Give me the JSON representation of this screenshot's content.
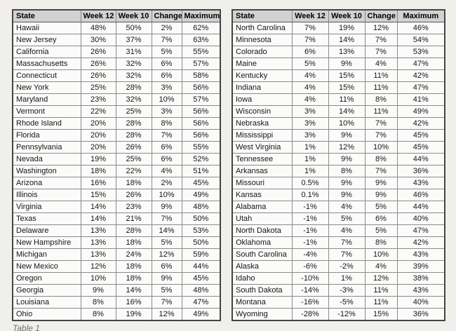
{
  "caption": "Table 1",
  "colors": {
    "page_background": "#f0efec",
    "header_background": "#d2d2d2",
    "cell_background": "#fbfbfa",
    "outer_border": "#444444",
    "inner_border": "#8a8a8a",
    "caption_color": "#6f6f6f"
  },
  "left_table": {
    "headers": [
      "State",
      "Week 12",
      "Week 10",
      "Change",
      "Maximum"
    ],
    "rows": [
      [
        "Hawaii",
        "48%",
        "50%",
        "2%",
        "62%"
      ],
      [
        "New Jersey",
        "30%",
        "37%",
        "7%",
        "63%"
      ],
      [
        "California",
        "26%",
        "31%",
        "5%",
        "55%"
      ],
      [
        "Massachusetts",
        "26%",
        "32%",
        "6%",
        "57%"
      ],
      [
        "Connecticut",
        "26%",
        "32%",
        "6%",
        "58%"
      ],
      [
        "New York",
        "25%",
        "28%",
        "3%",
        "56%"
      ],
      [
        "Maryland",
        "23%",
        "32%",
        "10%",
        "57%"
      ],
      [
        "Vermont",
        "22%",
        "25%",
        "3%",
        "56%"
      ],
      [
        "Rhode Island",
        "20%",
        "28%",
        "8%",
        "56%"
      ],
      [
        "Florida",
        "20%",
        "28%",
        "7%",
        "56%"
      ],
      [
        "Pennsylvania",
        "20%",
        "26%",
        "6%",
        "55%"
      ],
      [
        "Nevada",
        "19%",
        "25%",
        "6%",
        "52%"
      ],
      [
        "Washington",
        "18%",
        "22%",
        "4%",
        "51%"
      ],
      [
        "Arizona",
        "16%",
        "18%",
        "2%",
        "45%"
      ],
      [
        "Illinois",
        "15%",
        "26%",
        "10%",
        "49%"
      ],
      [
        "Virginia",
        "14%",
        "23%",
        "9%",
        "48%"
      ],
      [
        "Texas",
        "14%",
        "21%",
        "7%",
        "50%"
      ],
      [
        "Delaware",
        "13%",
        "28%",
        "14%",
        "53%"
      ],
      [
        "New Hampshire",
        "13%",
        "18%",
        "5%",
        "50%"
      ],
      [
        "Michigan",
        "13%",
        "24%",
        "12%",
        "59%"
      ],
      [
        "New Mexico",
        "12%",
        "18%",
        "6%",
        "44%"
      ],
      [
        "Oregon",
        "10%",
        "18%",
        "9%",
        "45%"
      ],
      [
        "Georgia",
        "9%",
        "14%",
        "5%",
        "48%"
      ],
      [
        "Louisiana",
        "8%",
        "16%",
        "7%",
        "47%"
      ],
      [
        "Ohio",
        "8%",
        "19%",
        "12%",
        "49%"
      ]
    ]
  },
  "right_table": {
    "headers": [
      "State",
      "Week 12",
      "Week 10",
      "Change",
      "Maximum"
    ],
    "rows": [
      [
        "North Carolina",
        "7%",
        "19%",
        "12%",
        "46%"
      ],
      [
        "Minnesota",
        "7%",
        "14%",
        "7%",
        "54%"
      ],
      [
        "Colorado",
        "6%",
        "13%",
        "7%",
        "53%"
      ],
      [
        "Maine",
        "5%",
        "9%",
        "4%",
        "47%"
      ],
      [
        "Kentucky",
        "4%",
        "15%",
        "11%",
        "42%"
      ],
      [
        "Indiana",
        "4%",
        "15%",
        "11%",
        "47%"
      ],
      [
        "Iowa",
        "4%",
        "11%",
        "8%",
        "41%"
      ],
      [
        "Wisconsin",
        "3%",
        "14%",
        "11%",
        "49%"
      ],
      [
        "Nebraska",
        "3%",
        "10%",
        "7%",
        "42%"
      ],
      [
        "Mississippi",
        "3%",
        "9%",
        "7%",
        "45%"
      ],
      [
        "West Virginia",
        "1%",
        "12%",
        "10%",
        "45%"
      ],
      [
        "Tennessee",
        "1%",
        "9%",
        "8%",
        "44%"
      ],
      [
        "Arkansas",
        "1%",
        "8%",
        "7%",
        "36%"
      ],
      [
        "Missouri",
        "0.5%",
        "9%",
        "9%",
        "43%"
      ],
      [
        "Kansas",
        "0.1%",
        "9%",
        "9%",
        "46%"
      ],
      [
        "Alabama",
        "-1%",
        "4%",
        "5%",
        "44%"
      ],
      [
        "Utah",
        "-1%",
        "5%",
        "6%",
        "40%"
      ],
      [
        "North Dakota",
        "-1%",
        "4%",
        "5%",
        "47%"
      ],
      [
        "Oklahoma",
        "-1%",
        "7%",
        "8%",
        "42%"
      ],
      [
        "South Carolina",
        "-4%",
        "7%",
        "10%",
        "43%"
      ],
      [
        "Alaska",
        "-6%",
        "-2%",
        "4%",
        "39%"
      ],
      [
        "Idaho",
        "-10%",
        "1%",
        "12%",
        "38%"
      ],
      [
        "South Dakota",
        "-14%",
        "-3%",
        "11%",
        "43%"
      ],
      [
        "Montana",
        "-16%",
        "-5%",
        "11%",
        "40%"
      ],
      [
        "Wyoming",
        "-28%",
        "-12%",
        "15%",
        "36%"
      ]
    ]
  }
}
